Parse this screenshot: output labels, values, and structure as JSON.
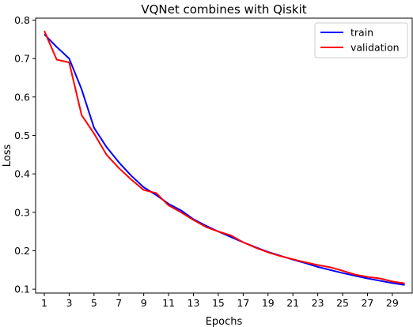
{
  "chart_data": {
    "type": "line",
    "title": "VQNet combines with Qiskit",
    "xlabel": "Epochs",
    "ylabel": "Loss",
    "xlim": [
      0.3,
      30.6
    ],
    "ylim": [
      0.09,
      0.805
    ],
    "xticks": [
      1,
      3,
      5,
      7,
      9,
      11,
      13,
      15,
      17,
      19,
      21,
      23,
      25,
      27,
      29
    ],
    "yticks": [
      0.1,
      0.2,
      0.3,
      0.4,
      0.5,
      0.6,
      0.7,
      0.8
    ],
    "ytick_labels": [
      "0.1",
      "0.2",
      "0.3",
      "0.4",
      "0.5",
      "0.6",
      "0.7",
      "0.8"
    ],
    "grid": false,
    "legend_position": "top-right",
    "x": [
      1,
      2,
      3,
      4,
      5,
      6,
      7,
      8,
      9,
      10,
      11,
      12,
      13,
      14,
      15,
      16,
      17,
      18,
      19,
      20,
      21,
      22,
      23,
      24,
      25,
      26,
      27,
      28,
      29,
      30
    ],
    "series": [
      {
        "name": "train",
        "color": "#0000ff",
        "values": [
          0.763,
          0.73,
          0.7,
          0.62,
          0.52,
          0.47,
          0.43,
          0.395,
          0.365,
          0.345,
          0.322,
          0.305,
          0.282,
          0.265,
          0.25,
          0.236,
          0.222,
          0.209,
          0.197,
          0.187,
          0.177,
          0.168,
          0.158,
          0.15,
          0.142,
          0.135,
          0.128,
          0.122,
          0.116,
          0.111
        ]
      },
      {
        "name": "validation",
        "color": "#ff0000",
        "values": [
          0.772,
          0.697,
          0.69,
          0.553,
          0.505,
          0.45,
          0.415,
          0.385,
          0.358,
          0.35,
          0.318,
          0.3,
          0.28,
          0.262,
          0.25,
          0.24,
          0.222,
          0.208,
          0.196,
          0.186,
          0.178,
          0.17,
          0.163,
          0.157,
          0.148,
          0.138,
          0.132,
          0.128,
          0.12,
          0.115
        ]
      }
    ]
  }
}
